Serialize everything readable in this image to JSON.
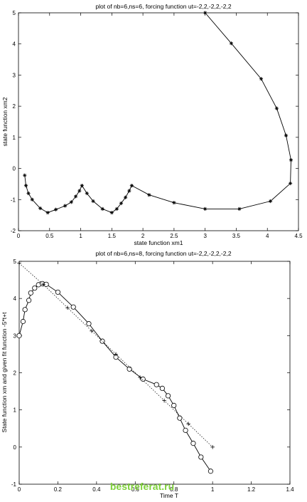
{
  "chart_data": [
    {
      "type": "line",
      "title": "plot of nb=6,ns=6, forcing function ut=-2,2,-2,2,-2,2",
      "xlabel": "state function xm1",
      "ylabel": "state function xm2",
      "xlim": [
        0,
        4.5
      ],
      "ylim": [
        -2,
        5
      ],
      "xticks": [
        "0",
        "0.5",
        "1",
        "1.5",
        "2",
        "2.5",
        "3",
        "3.5",
        "4",
        "4.5"
      ],
      "yticks": [
        "-2",
        "-1",
        "0",
        "1",
        "2",
        "3",
        "4",
        "5"
      ],
      "grid": false,
      "series": [
        {
          "marker": "asterisk",
          "points": [
            [
              3.0,
              5.0
            ],
            [
              3.42,
              4.02
            ],
            [
              3.9,
              2.88
            ],
            [
              4.15,
              1.93
            ],
            [
              4.3,
              1.06
            ],
            [
              4.38,
              0.27
            ],
            [
              4.37,
              -0.48
            ],
            [
              4.05,
              -1.05
            ],
            [
              3.55,
              -1.3
            ],
            [
              3.0,
              -1.3
            ],
            [
              2.5,
              -1.1
            ],
            [
              2.1,
              -0.85
            ],
            [
              1.82,
              -0.55
            ],
            [
              1.78,
              -0.72
            ],
            [
              1.72,
              -0.93
            ],
            [
              1.65,
              -1.12
            ],
            [
              1.58,
              -1.3
            ],
            [
              1.5,
              -1.42
            ],
            [
              1.35,
              -1.3
            ],
            [
              1.2,
              -1.05
            ],
            [
              1.1,
              -0.8
            ],
            [
              1.02,
              -0.55
            ],
            [
              0.98,
              -0.72
            ],
            [
              0.92,
              -0.9
            ],
            [
              0.85,
              -1.08
            ],
            [
              0.75,
              -1.2
            ],
            [
              0.6,
              -1.32
            ],
            [
              0.47,
              -1.42
            ],
            [
              0.35,
              -1.28
            ],
            [
              0.22,
              -1.0
            ],
            [
              0.16,
              -0.8
            ],
            [
              0.12,
              -0.55
            ],
            [
              0.1,
              -0.22
            ]
          ]
        }
      ]
    },
    {
      "type": "line",
      "title": "plot of nb=6,ns=8, forcing function ut=-2,2,-2,2,-2,2",
      "xlabel": "Time T",
      "ylabel": "State function xm and given fit function -5*t+t",
      "xlim": [
        0,
        1.4
      ],
      "ylim": [
        -1,
        5
      ],
      "xticks": [
        "0",
        "0.2",
        "0.4",
        "0.6",
        "0.8",
        "1",
        "1.2",
        "1.4"
      ],
      "yticks": [
        "-1",
        "0",
        "1",
        "2",
        "3",
        "4",
        "5"
      ],
      "grid": false,
      "series": [
        {
          "marker": "circle",
          "style": "solid",
          "points": [
            [
              0.0,
              3.0
            ],
            [
              0.02,
              3.38
            ],
            [
              0.03,
              3.7
            ],
            [
              0.05,
              3.95
            ],
            [
              0.06,
              4.15
            ],
            [
              0.08,
              4.28
            ],
            [
              0.1,
              4.37
            ],
            [
              0.12,
              4.4
            ],
            [
              0.14,
              4.38
            ],
            [
              0.2,
              4.17
            ],
            [
              0.28,
              3.77
            ],
            [
              0.36,
              3.32
            ],
            [
              0.43,
              2.85
            ],
            [
              0.5,
              2.42
            ],
            [
              0.57,
              2.1
            ],
            [
              0.64,
              1.83
            ],
            [
              0.71,
              1.68
            ],
            [
              0.74,
              1.58
            ],
            [
              0.77,
              1.38
            ],
            [
              0.8,
              1.12
            ],
            [
              0.83,
              0.78
            ],
            [
              0.86,
              0.45
            ],
            [
              0.9,
              0.1
            ],
            [
              0.94,
              -0.27
            ],
            [
              0.99,
              -0.65
            ]
          ]
        },
        {
          "marker": "plus",
          "style": "dotted",
          "points": [
            [
              0.0,
              4.95
            ],
            [
              0.125,
              4.375
            ],
            [
              0.25,
              3.75
            ],
            [
              0.375,
              3.125
            ],
            [
              0.5,
              2.5
            ],
            [
              0.625,
              1.875
            ],
            [
              0.75,
              1.25
            ],
            [
              0.875,
              0.625
            ],
            [
              1.0,
              0.0
            ]
          ]
        }
      ]
    }
  ],
  "watermark": "bestreferat.ru"
}
